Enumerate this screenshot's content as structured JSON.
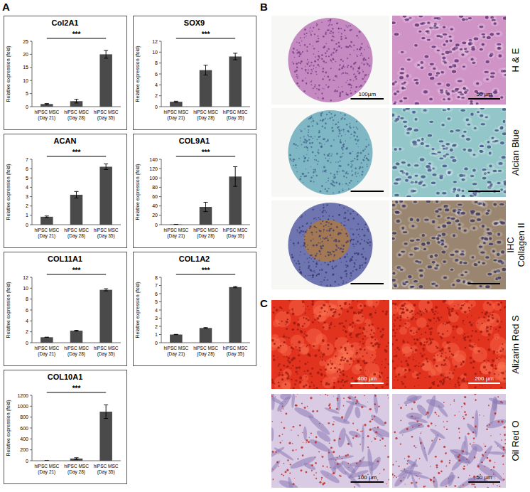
{
  "panel_labels": [
    "A",
    "B",
    "C"
  ],
  "chart_data": [
    {
      "type": "bar",
      "title": "Col2A1",
      "y_label": "Relative expression (fold)",
      "categories": [
        "hiPSC MSC\n(Day 21)",
        "hiPSC MSC\n(Day 28)",
        "hiPSC MSC\n(Day 35)"
      ],
      "values": [
        1.0,
        2.1,
        20.0
      ],
      "errors": [
        0.2,
        0.7,
        1.5
      ],
      "color": "#4a4a4a",
      "ylim": [
        0,
        25
      ],
      "yticks": [
        0,
        5,
        10,
        15,
        20,
        25
      ],
      "annotation": "***"
    },
    {
      "type": "bar",
      "title": "SOX9",
      "y_label": "Relative expression (fold)",
      "categories": [
        "hiPSC MSC\n(Day 21)",
        "hiPSC MSC\n(Day 28)",
        "hiPSC MSC\n(Day 35)"
      ],
      "values": [
        0.9,
        6.7,
        9.2
      ],
      "errors": [
        0.1,
        0.9,
        0.6
      ],
      "color": "#4a4a4a",
      "ylim": [
        0,
        12
      ],
      "yticks": [
        0,
        2,
        4,
        6,
        8,
        10,
        12
      ],
      "annotation": "***"
    },
    {
      "type": "bar",
      "title": "ACAN",
      "y_label": "Relative expression (fold)",
      "categories": [
        "hiPSC MSC\n(Day 21)",
        "hiPSC MSC\n(Day 28)",
        "hiPSC MSC\n(Day 35)"
      ],
      "values": [
        0.85,
        3.2,
        6.2
      ],
      "errors": [
        0.08,
        0.35,
        0.3
      ],
      "color": "#4a4a4a",
      "ylim": [
        0,
        7
      ],
      "yticks": [
        0,
        1,
        2,
        3,
        4,
        5,
        6,
        7
      ],
      "annotation": "***"
    },
    {
      "type": "bar",
      "title": "COL9A1",
      "y_label": "Relative expression (fold)",
      "categories": [
        "hiPSC MSC\n(Day 21)",
        "hiPSC MSC\n(Day 28)",
        "hiPSC MSC\n(Day 35)"
      ],
      "values": [
        0.5,
        38,
        103
      ],
      "errors": [
        0.1,
        10,
        21
      ],
      "color": "#4a4a4a",
      "ylim": [
        0,
        140
      ],
      "yticks": [
        0,
        20,
        40,
        60,
        80,
        100,
        120,
        140
      ],
      "annotation": "***"
    },
    {
      "type": "bar",
      "title": "COL11A1",
      "y_label": "Relative expression (fold)",
      "categories": [
        "hiPSC MSC\n(Day 21)",
        "hiPSC MSC\n(Day 28)",
        "hiPSC MSC\n(Day 35)"
      ],
      "values": [
        1.0,
        2.2,
        9.7
      ],
      "errors": [
        0.02,
        0.08,
        0.2
      ],
      "color": "#4a4a4a",
      "ylim": [
        0,
        12
      ],
      "yticks": [
        0,
        2,
        4,
        6,
        8,
        10,
        12
      ],
      "annotation": "***"
    },
    {
      "type": "bar",
      "title": "COL1A2",
      "y_label": "Relative expression (fold)",
      "categories": [
        "hiPSC MSC\n(Day 21)",
        "hiPSC MSC\n(Day 28)",
        "hiPSC MSC\n(Day 35)"
      ],
      "values": [
        1.0,
        1.8,
        6.8
      ],
      "errors": [
        0.02,
        0.05,
        0.08
      ],
      "color": "#4a4a4a",
      "ylim": [
        0,
        8
      ],
      "yticks": [
        0,
        1,
        2,
        3,
        4,
        5,
        6,
        7,
        8
      ],
      "annotation": "***"
    },
    {
      "type": "bar",
      "title": "COL10A1",
      "y_label": "Relative expression (fold)",
      "categories": [
        "hiPSC MSC\n(Day 21)",
        "hiPSC MSC\n(Day 28)",
        "hiPSC MSC\n(Day 35)"
      ],
      "values": [
        1,
        40,
        900
      ],
      "errors": [
        0.2,
        15,
        125
      ],
      "color": "#4a4a4a",
      "ylim": [
        0,
        1200
      ],
      "yticks": [
        0,
        200,
        400,
        600,
        800,
        1000,
        1200
      ],
      "annotation": "***"
    }
  ],
  "micrographs": [
    {
      "label": "H & E",
      "scale_bars": [
        "100µm",
        "50 µm"
      ]
    },
    {
      "label": "Alcian Blue"
    },
    {
      "label": "IHC\nCollagen II"
    },
    {
      "label": "Alizarin Red S",
      "scale_bars": [
        "400 µm",
        "200 µm"
      ]
    },
    {
      "label": "Oil Red O",
      "scale_bars": [
        "100 µm",
        "50 µm"
      ]
    }
  ]
}
